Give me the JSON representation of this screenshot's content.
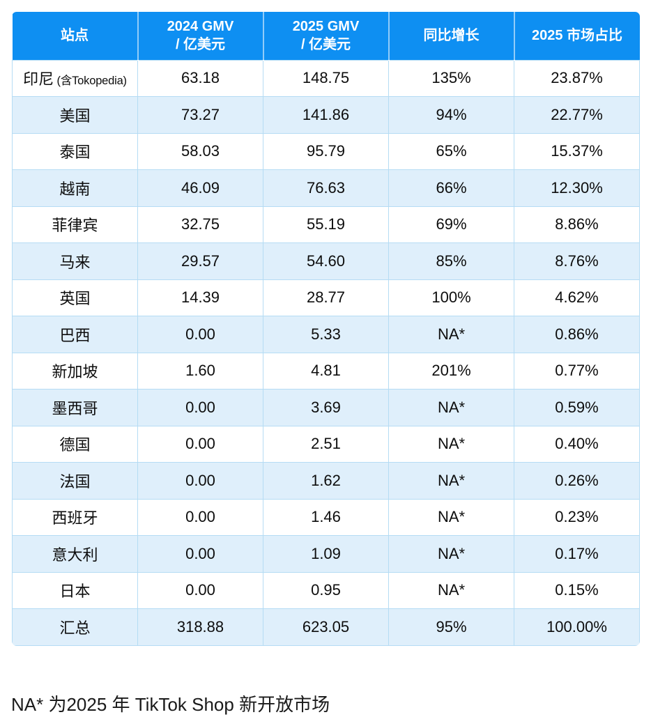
{
  "colors": {
    "header_bg": "#0E8FF2",
    "header_text": "#ffffff",
    "row_bg": "#ffffff",
    "row_alt_bg": "#DFEFFB",
    "grid_border": "#B5DCF4",
    "body_text": "#0d0d0d"
  },
  "table": {
    "columns": [
      {
        "label": "站点",
        "sublabel": ""
      },
      {
        "label": "2024 GMV",
        "sublabel": "/ 亿美元"
      },
      {
        "label": "2025 GMV",
        "sublabel": "/ 亿美元"
      },
      {
        "label": "同比增长",
        "sublabel": ""
      },
      {
        "label": "2025 市场占比",
        "sublabel": ""
      }
    ],
    "rows": [
      {
        "site": "印尼",
        "site_note": "(含Tokopedia)",
        "gmv_2024": "63.18",
        "gmv_2025": "148.75",
        "yoy": "135%",
        "share": "23.87%"
      },
      {
        "site": "美国",
        "site_note": "",
        "gmv_2024": "73.27",
        "gmv_2025": "141.86",
        "yoy": "94%",
        "share": "22.77%"
      },
      {
        "site": "泰国",
        "site_note": "",
        "gmv_2024": "58.03",
        "gmv_2025": "95.79",
        "yoy": "65%",
        "share": "15.37%"
      },
      {
        "site": "越南",
        "site_note": "",
        "gmv_2024": "46.09",
        "gmv_2025": "76.63",
        "yoy": "66%",
        "share": "12.30%"
      },
      {
        "site": "菲律宾",
        "site_note": "",
        "gmv_2024": "32.75",
        "gmv_2025": "55.19",
        "yoy": "69%",
        "share": "8.86%"
      },
      {
        "site": "马来",
        "site_note": "",
        "gmv_2024": "29.57",
        "gmv_2025": "54.60",
        "yoy": "85%",
        "share": "8.76%"
      },
      {
        "site": "英国",
        "site_note": "",
        "gmv_2024": "14.39",
        "gmv_2025": "28.77",
        "yoy": "100%",
        "share": "4.62%"
      },
      {
        "site": "巴西",
        "site_note": "",
        "gmv_2024": "0.00",
        "gmv_2025": "5.33",
        "yoy": "NA*",
        "share": "0.86%"
      },
      {
        "site": "新加坡",
        "site_note": "",
        "gmv_2024": "1.60",
        "gmv_2025": "4.81",
        "yoy": "201%",
        "share": "0.77%"
      },
      {
        "site": "墨西哥",
        "site_note": "",
        "gmv_2024": "0.00",
        "gmv_2025": "3.69",
        "yoy": "NA*",
        "share": "0.59%"
      },
      {
        "site": "德国",
        "site_note": "",
        "gmv_2024": "0.00",
        "gmv_2025": "2.51",
        "yoy": "NA*",
        "share": "0.40%"
      },
      {
        "site": "法国",
        "site_note": "",
        "gmv_2024": "0.00",
        "gmv_2025": "1.62",
        "yoy": "NA*",
        "share": "0.26%"
      },
      {
        "site": "西班牙",
        "site_note": "",
        "gmv_2024": "0.00",
        "gmv_2025": "1.46",
        "yoy": "NA*",
        "share": "0.23%"
      },
      {
        "site": "意大利",
        "site_note": "",
        "gmv_2024": "0.00",
        "gmv_2025": "1.09",
        "yoy": "NA*",
        "share": "0.17%"
      },
      {
        "site": "日本",
        "site_note": "",
        "gmv_2024": "0.00",
        "gmv_2025": "0.95",
        "yoy": "NA*",
        "share": "0.15%"
      },
      {
        "site": "汇总",
        "site_note": "",
        "gmv_2024": "318.88",
        "gmv_2025": "623.05",
        "yoy": "95%",
        "share": "100.00%"
      }
    ]
  },
  "footnote": "NA* 为2025 年 TikTok Shop 新开放市场",
  "chart_data": {
    "type": "table",
    "title": "",
    "columns": [
      "站点",
      "2024 GMV / 亿美元",
      "2025 GMV / 亿美元",
      "同比增长",
      "2025 市场占比"
    ],
    "rows": [
      [
        "印尼 (含Tokopedia)",
        63.18,
        148.75,
        "135%",
        "23.87%"
      ],
      [
        "美国",
        73.27,
        141.86,
        "94%",
        "22.77%"
      ],
      [
        "泰国",
        58.03,
        95.79,
        "65%",
        "15.37%"
      ],
      [
        "越南",
        46.09,
        76.63,
        "66%",
        "12.30%"
      ],
      [
        "菲律宾",
        32.75,
        55.19,
        "69%",
        "8.86%"
      ],
      [
        "马来",
        29.57,
        54.6,
        "85%",
        "8.76%"
      ],
      [
        "英国",
        14.39,
        28.77,
        "100%",
        "4.62%"
      ],
      [
        "巴西",
        0.0,
        5.33,
        "NA*",
        "0.86%"
      ],
      [
        "新加坡",
        1.6,
        4.81,
        "201%",
        "0.77%"
      ],
      [
        "墨西哥",
        0.0,
        3.69,
        "NA*",
        "0.59%"
      ],
      [
        "德国",
        0.0,
        2.51,
        "NA*",
        "0.40%"
      ],
      [
        "法国",
        0.0,
        1.62,
        "NA*",
        "0.26%"
      ],
      [
        "西班牙",
        0.0,
        1.46,
        "NA*",
        "0.23%"
      ],
      [
        "意大利",
        0.0,
        1.09,
        "NA*",
        "0.17%"
      ],
      [
        "日本",
        0.0,
        0.95,
        "NA*",
        "0.15%"
      ],
      [
        "汇总",
        318.88,
        623.05,
        "95%",
        "100.00%"
      ]
    ],
    "footnote": "NA* 为2025 年 TikTok Shop 新开放市场"
  }
}
